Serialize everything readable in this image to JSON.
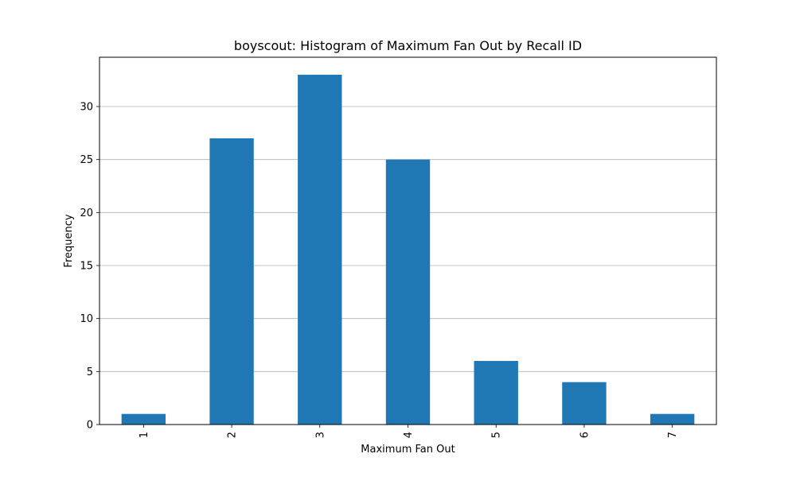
{
  "chart_data": {
    "type": "bar",
    "title": "boyscout: Histogram of Maximum Fan Out by Recall ID",
    "xlabel": "Maximum Fan Out",
    "ylabel": "Frequency",
    "categories": [
      "1",
      "2",
      "3",
      "4",
      "5",
      "6",
      "7"
    ],
    "values": [
      1,
      27,
      33,
      25,
      6,
      4,
      1
    ],
    "ylim": [
      0,
      34.65
    ],
    "yticks": [
      0,
      5,
      10,
      15,
      20,
      25,
      30
    ],
    "grid": "y-major",
    "bar_color": "#1f77b4",
    "grid_color": "#b0b0b0",
    "legend": "none"
  }
}
